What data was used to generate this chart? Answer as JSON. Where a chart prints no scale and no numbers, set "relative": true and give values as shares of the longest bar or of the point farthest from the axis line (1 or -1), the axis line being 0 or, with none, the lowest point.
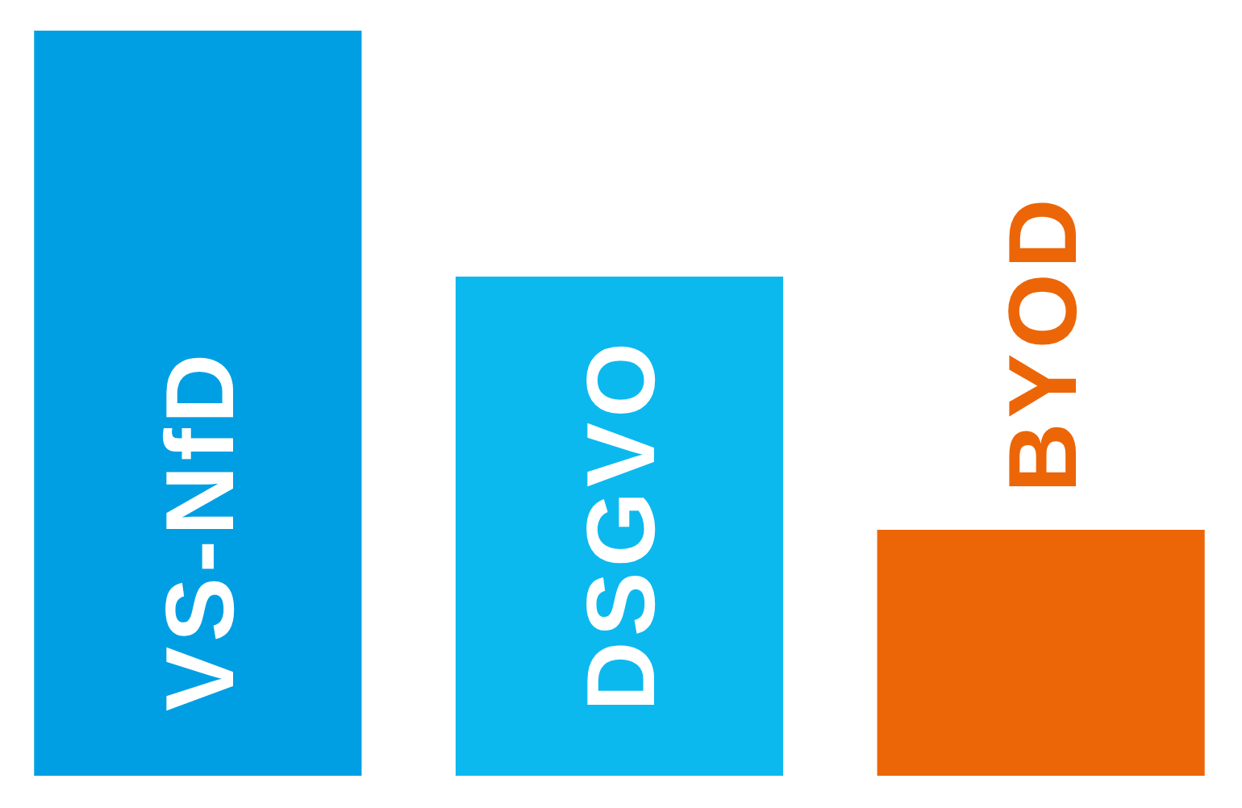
{
  "chart_data": {
    "type": "bar",
    "categories": [
      "VS-NfD",
      "DSGVO",
      "BYOD"
    ],
    "values": [
      1,
      0.67,
      0.33
    ],
    "colors": [
      "#009fe3",
      "#0cb9ee",
      "#ec6608"
    ],
    "relative": true
  }
}
